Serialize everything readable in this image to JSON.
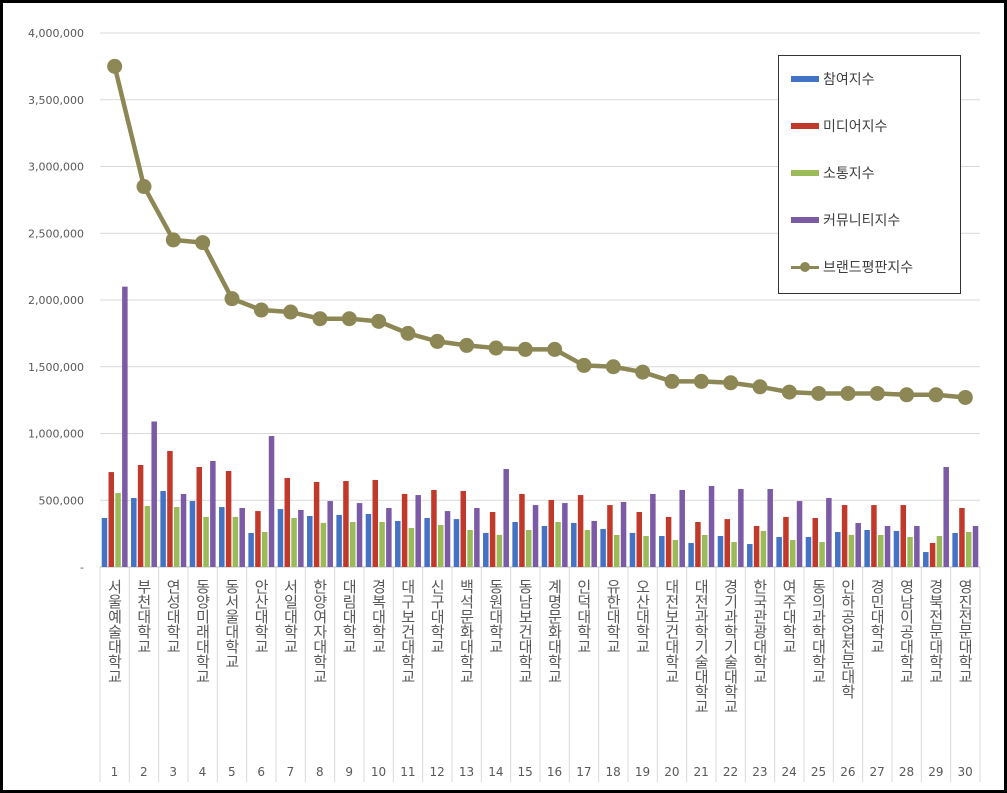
{
  "chart_data": {
    "type": "bar+line",
    "categories": [
      "서울예술대학교",
      "부천대학교",
      "연성대학교",
      "동양미래대학교",
      "동서울대학교",
      "안산대학교",
      "서일대학교",
      "한양여자대학교",
      "대림대학교",
      "경복대학교",
      "대구보건대학교",
      "신구대학교",
      "백석문화대학교",
      "동원대학교",
      "동남보건대학교",
      "계명문화대학교",
      "인덕대학교",
      "유한대학교",
      "오산대학교",
      "대전보건대학교",
      "대전과학기술대학교",
      "경기과학기술대학교",
      "한국관광대학교",
      "여주대학교",
      "동의과학대학교",
      "인하공업전문대학",
      "경민대학교",
      "영남이공대학교",
      "경북전문대학교",
      "영진전문대학교"
    ],
    "ranks": [
      "1",
      "2",
      "3",
      "4",
      "5",
      "6",
      "7",
      "8",
      "9",
      "10",
      "11",
      "12",
      "13",
      "14",
      "15",
      "16",
      "17",
      "18",
      "19",
      "20",
      "21",
      "22",
      "23",
      "24",
      "25",
      "26",
      "27",
      "28",
      "29",
      "30"
    ],
    "series": [
      {
        "name": "참여지수",
        "type": "bar",
        "color": "#4472C4",
        "values": [
          367000,
          517000,
          569000,
          494000,
          449000,
          255000,
          434000,
          382000,
          390000,
          397000,
          345000,
          367000,
          359000,
          255000,
          337000,
          307000,
          330000,
          285000,
          255000,
          232000,
          180000,
          232000,
          172000,
          225000,
          225000,
          262000,
          277000,
          270000,
          112000,
          255000
        ]
      },
      {
        "name": "미디어지수",
        "type": "bar",
        "color": "#C0392B",
        "values": [
          711000,
          764000,
          869000,
          749000,
          719000,
          419000,
          667000,
          637000,
          644000,
          652000,
          547000,
          577000,
          569000,
          412000,
          547000,
          502000,
          539000,
          464000,
          412000,
          375000,
          337000,
          359000,
          307000,
          375000,
          367000,
          464000,
          464000,
          464000,
          180000,
          442000
        ]
      },
      {
        "name": "소통지수",
        "type": "bar",
        "color": "#9BBB59",
        "values": [
          554000,
          457000,
          449000,
          375000,
          375000,
          262000,
          367000,
          330000,
          337000,
          337000,
          292000,
          315000,
          277000,
          240000,
          277000,
          337000,
          277000,
          240000,
          232000,
          202000,
          240000,
          187000,
          270000,
          202000,
          187000,
          240000,
          240000,
          225000,
          232000,
          262000
        ]
      },
      {
        "name": "커뮤니티지수",
        "type": "bar",
        "color": "#7B5AA6",
        "values": [
          2100000,
          1090000,
          547000,
          794000,
          442000,
          981000,
          427000,
          494000,
          479000,
          442000,
          539000,
          419000,
          442000,
          734000,
          464000,
          479000,
          345000,
          487000,
          547000,
          577000,
          607000,
          584000,
          584000,
          494000,
          517000,
          330000,
          307000,
          307000,
          749000,
          307000
        ]
      },
      {
        "name": "브랜드평판지수",
        "type": "line",
        "color": "#8C8755",
        "values": [
          3750000,
          2850000,
          2450000,
          2430000,
          2010000,
          1925000,
          1910000,
          1860000,
          1860000,
          1840000,
          1750000,
          1690000,
          1660000,
          1640000,
          1630000,
          1630000,
          1510000,
          1500000,
          1460000,
          1390000,
          1390000,
          1380000,
          1350000,
          1310000,
          1300000,
          1300000,
          1300000,
          1290000,
          1290000,
          1270000
        ]
      }
    ],
    "ylim": [
      0,
      4000000
    ],
    "yticks": [
      "-",
      "500,000",
      "1,000,000",
      "1,500,000",
      "2,000,000",
      "2,500,000",
      "3,000,000",
      "3,500,000",
      "4,000,000"
    ],
    "grid": true,
    "legend_position": "top-right"
  }
}
